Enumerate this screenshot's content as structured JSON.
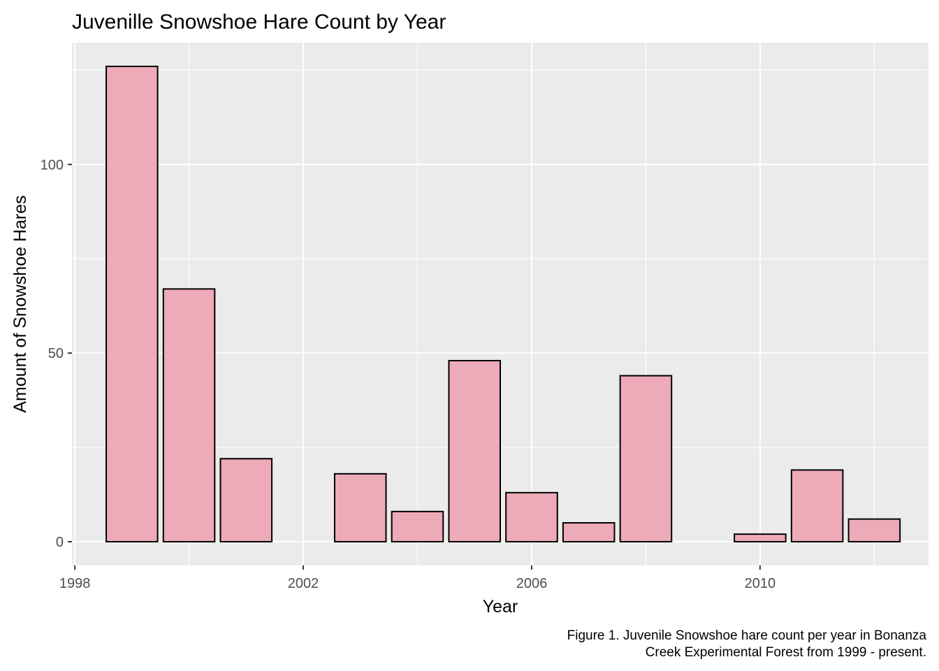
{
  "chart_data": {
    "type": "bar",
    "title": "Juvenille Snowshoe Hare Count by Year",
    "xlabel": "Year",
    "ylabel": "Amount of Snowshoe Hares",
    "xlim": [
      1997.95,
      2012.95
    ],
    "ylim": [
      -6.3,
      132.3
    ],
    "x_ticks": [
      1998,
      2002,
      2006,
      2010
    ],
    "x_minor_ticks": [
      2000,
      2004,
      2008,
      2012
    ],
    "y_ticks": [
      0,
      50,
      100
    ],
    "y_minor_ticks": [
      25,
      75,
      125
    ],
    "grid": true,
    "legend": "none",
    "x": [
      1999,
      2000,
      2001,
      2003,
      2004,
      2005,
      2006,
      2007,
      2008,
      2010,
      2011,
      2012
    ],
    "values": [
      126,
      67,
      22,
      18,
      8,
      48,
      13,
      5,
      44,
      2,
      19,
      6
    ],
    "bar_width_years": 0.9,
    "colors": {
      "bar_fill": "#EDAAB8",
      "bar_outline": "#000000",
      "panel": "#EBEBEB",
      "grid": "#FFFFFF",
      "tick_label": "#4D4D4D"
    }
  },
  "caption": {
    "line1": "Figure 1. Juvenile Snowshoe hare count per year in Bonanza",
    "line2": "Creek Experimental Forest from 1999 - present."
  }
}
